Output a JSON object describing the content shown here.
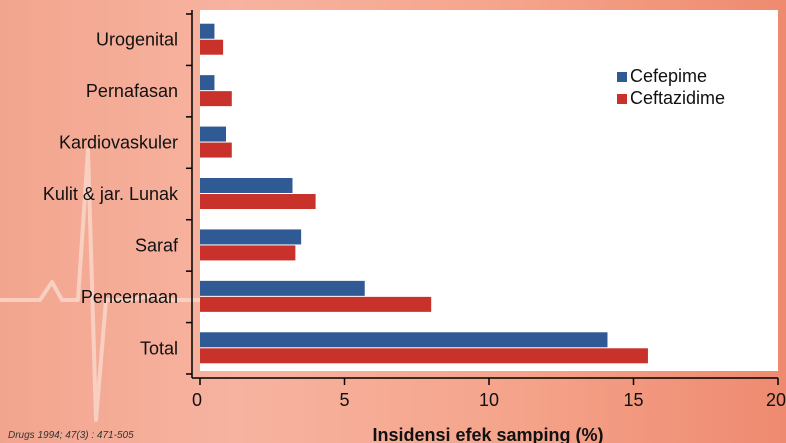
{
  "source": "Drugs 1994; 47(3) : 471-505",
  "chart_data": {
    "type": "bar",
    "orientation": "horizontal",
    "categories": [
      "Urogenital",
      "Pernafasan",
      "Kardiovaskuler",
      "Kulit & jar. Lunak",
      "Saraf",
      "Pencernaan",
      "Total"
    ],
    "series": [
      {
        "name": "Cefepime",
        "color": "#2f5a94",
        "values": [
          0.5,
          0.5,
          0.9,
          3.2,
          3.5,
          5.7,
          14.1
        ]
      },
      {
        "name": "Ceftazidime",
        "color": "#c8322b",
        "values": [
          0.8,
          1.1,
          1.1,
          4.0,
          3.3,
          8.0,
          15.5
        ]
      }
    ],
    "xlabel": "Insidensi efek samping (%)",
    "xlim": [
      0,
      20
    ],
    "xticks": [
      0,
      5,
      10,
      15,
      20
    ],
    "legend": "right",
    "grid": false
  }
}
